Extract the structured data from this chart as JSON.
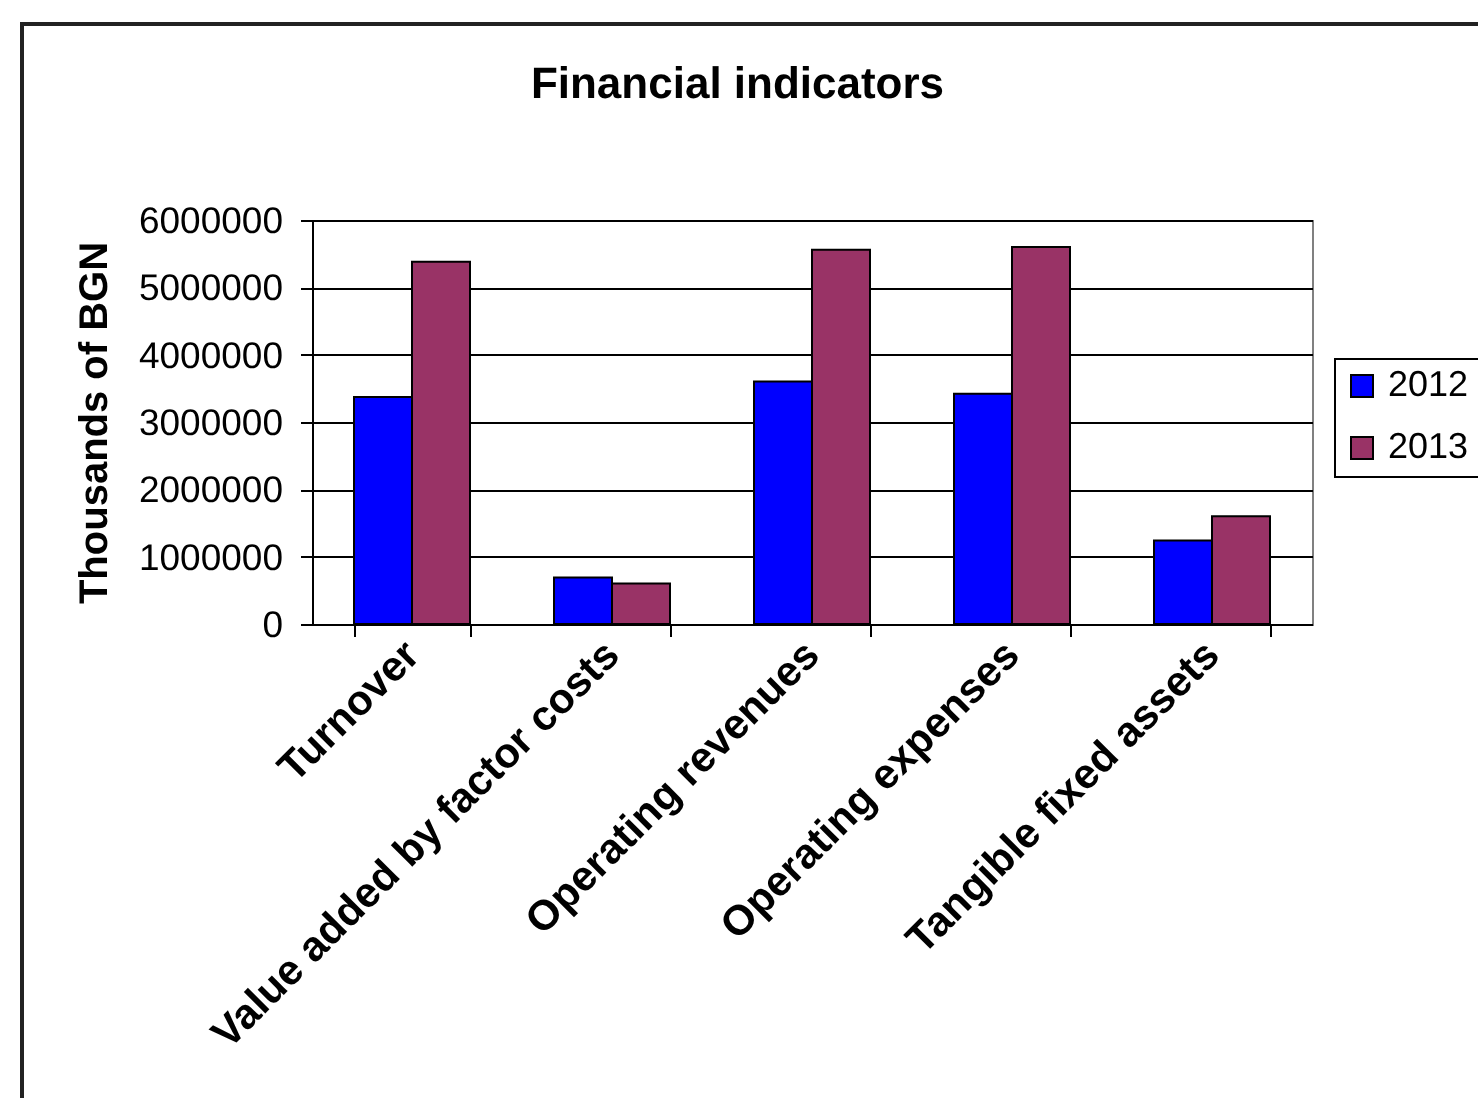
{
  "chart_data": {
    "type": "bar",
    "title": "Financial indicators",
    "ylabel": "Thousands of BGN",
    "categories": [
      "Turnover",
      "Value added by factor costs",
      "Operating revenues",
      "Operating expenses",
      "Tangible fixed assets"
    ],
    "series": [
      {
        "name": "2012",
        "color": "#0000ff",
        "values": [
          3370000,
          690000,
          3600000,
          3420000,
          1240000
        ]
      },
      {
        "name": "2013",
        "color": "#993366",
        "values": [
          5380000,
          600000,
          5560000,
          5600000,
          1600000
        ]
      }
    ],
    "ylim": [
      0,
      6000000
    ],
    "yticks": [
      0,
      1000000,
      2000000,
      3000000,
      4000000,
      5000000,
      6000000
    ],
    "grid": "y",
    "legend": "right"
  }
}
